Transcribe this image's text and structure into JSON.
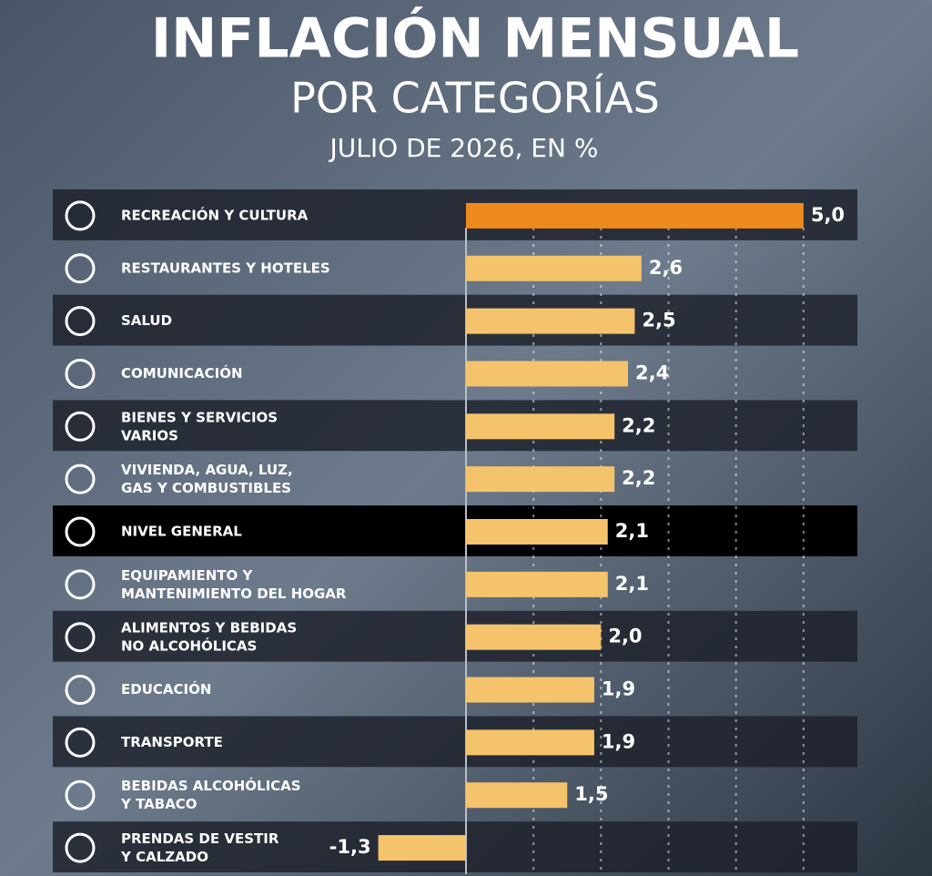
{
  "chart_data": {
    "type": "hbar",
    "title": "INFLACIÓN MENSUAL",
    "subtitle": "POR CATEGORÍAS",
    "caption": "JULIO DE 2026, EN %",
    "categories": [
      "RECREACIÓN Y CULTURA",
      "RESTAURANTES Y HOTELES",
      "SALUD",
      "COMUNICACIÓN",
      "BIENES Y SERVICIOS\nVARIOS",
      "VIVIENDA, AGUA, LUZ,\nGAS Y COMBUSTIBLES",
      "NIVEL GENERAL",
      "EQUIPAMIENTO Y\nMANTENIMIENTO DEL HOGAR",
      "ALIMENTOS Y BEBIDAS\nNO ALCOHÓLICAS",
      "EDUCACIÓN",
      "TRANSPORTE",
      "BEBIDAS ALCOHÓLICAS\nY TABACO",
      "PRENDAS DE VESTIR\nY CALZADO"
    ],
    "values": [
      5.0,
      2.6,
      2.5,
      2.4,
      2.2,
      2.2,
      2.1,
      2.1,
      2.0,
      1.9,
      1.9,
      1.5,
      -1.3
    ],
    "value_labels": [
      "5,0",
      "2,6",
      "2,5",
      "2,4",
      "2,2",
      "2,2",
      "2,1",
      "2,1",
      "2,0",
      "1,9",
      "1,9",
      "1,5",
      "-1,3"
    ],
    "colors": [
      "#ef8a1e",
      "#f5c36c",
      "#f5c36c",
      "#f5c36c",
      "#f5c36c",
      "#f5c36c",
      "#f5c36c",
      "#f5c36c",
      "#f5c36c",
      "#f5c36c",
      "#f5c36c",
      "#f5c36c",
      "#f5c36c"
    ],
    "row_fills": [
      "rgba(28,32,42,0.82)",
      "rgba(0,0,0,0)",
      "rgba(28,32,42,0.82)",
      "rgba(0,0,0,0)",
      "rgba(28,32,42,0.82)",
      "rgba(0,0,0,0)",
      "#000000",
      "rgba(0,0,0,0)",
      "rgba(28,32,42,0.82)",
      "rgba(0,0,0,0)",
      "rgba(28,32,42,0.82)",
      "rgba(0,0,0,0)",
      "rgba(28,32,42,0.82)"
    ],
    "xlim": [
      -6,
      6
    ],
    "xticks": [
      0,
      1,
      2,
      3,
      4,
      5
    ],
    "grid": true
  }
}
